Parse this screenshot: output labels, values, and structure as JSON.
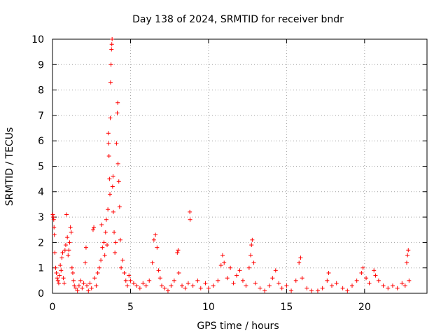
{
  "chart_data": {
    "type": "scatter",
    "title": "Day 138 of 2024, SRMTID for receiver bndr",
    "xlabel": "GPS time / hours",
    "ylabel": "SRMTID / TECUs",
    "xlim": [
      0,
      24
    ],
    "ylim": [
      0,
      10
    ],
    "xticks": [
      0,
      5,
      10,
      15,
      20
    ],
    "yticks": [
      0,
      1,
      2,
      3,
      4,
      5,
      6,
      7,
      8,
      9,
      10
    ],
    "grid": true,
    "marker": "+",
    "color": "#ff0000",
    "series": [
      {
        "name": "SRMTID",
        "points": [
          [
            0.02,
            3.1
          ],
          [
            0.05,
            3.0
          ],
          [
            0.08,
            2.9
          ],
          [
            0.1,
            2.6
          ],
          [
            0.12,
            2.3
          ],
          [
            0.15,
            1.6
          ],
          [
            0.2,
            1.0
          ],
          [
            0.25,
            0.8
          ],
          [
            0.3,
            0.6
          ],
          [
            0.35,
            0.5
          ],
          [
            0.4,
            0.4
          ],
          [
            0.45,
            0.7
          ],
          [
            0.5,
            1.1
          ],
          [
            0.55,
            0.9
          ],
          [
            0.6,
            1.4
          ],
          [
            0.65,
            1.6
          ],
          [
            0.7,
            0.6
          ],
          [
            0.75,
            0.4
          ],
          [
            0.8,
            1.7
          ],
          [
            0.85,
            1.9
          ],
          [
            0.9,
            3.1
          ],
          [
            0.95,
            2.2
          ],
          [
            1.0,
            1.5
          ],
          [
            1.05,
            1.7
          ],
          [
            1.1,
            2.0
          ],
          [
            1.15,
            2.6
          ],
          [
            1.2,
            2.4
          ],
          [
            1.25,
            1.0
          ],
          [
            1.3,
            0.8
          ],
          [
            1.35,
            0.5
          ],
          [
            1.4,
            0.3
          ],
          [
            1.5,
            0.2
          ],
          [
            1.6,
            0.1
          ],
          [
            1.7,
            0.3
          ],
          [
            1.8,
            0.5
          ],
          [
            1.9,
            0.2
          ],
          [
            2.0,
            0.4
          ],
          [
            2.1,
            1.2
          ],
          [
            2.15,
            1.8
          ],
          [
            2.2,
            0.3
          ],
          [
            2.3,
            0.1
          ],
          [
            2.4,
            0.4
          ],
          [
            2.5,
            0.2
          ],
          [
            2.6,
            2.5
          ],
          [
            2.65,
            2.6
          ],
          [
            2.7,
            0.6
          ],
          [
            2.8,
            0.3
          ],
          [
            2.9,
            0.8
          ],
          [
            3.0,
            1.0
          ],
          [
            3.1,
            1.3
          ],
          [
            3.15,
            2.7
          ],
          [
            3.2,
            1.8
          ],
          [
            3.3,
            2.0
          ],
          [
            3.35,
            1.5
          ],
          [
            3.4,
            2.4
          ],
          [
            3.45,
            2.9
          ],
          [
            3.5,
            1.9
          ],
          [
            3.55,
            3.3
          ],
          [
            3.58,
            6.3
          ],
          [
            3.6,
            5.9
          ],
          [
            3.62,
            5.4
          ],
          [
            3.65,
            4.5
          ],
          [
            3.68,
            3.9
          ],
          [
            3.7,
            6.9
          ],
          [
            3.72,
            8.3
          ],
          [
            3.75,
            9.0
          ],
          [
            3.78,
            9.6
          ],
          [
            3.8,
            9.8
          ],
          [
            3.82,
            10.0
          ],
          [
            3.85,
            4.2
          ],
          [
            3.88,
            4.6
          ],
          [
            3.9,
            3.2
          ],
          [
            3.95,
            2.4
          ],
          [
            4.0,
            1.6
          ],
          [
            4.05,
            2.0
          ],
          [
            4.1,
            5.9
          ],
          [
            4.15,
            7.1
          ],
          [
            4.18,
            7.5
          ],
          [
            4.2,
            5.1
          ],
          [
            4.25,
            4.4
          ],
          [
            4.3,
            3.4
          ],
          [
            4.35,
            2.1
          ],
          [
            4.4,
            1.0
          ],
          [
            4.5,
            1.3
          ],
          [
            4.6,
            0.8
          ],
          [
            4.7,
            0.5
          ],
          [
            4.8,
            0.3
          ],
          [
            4.9,
            0.7
          ],
          [
            5.0,
            0.5
          ],
          [
            5.2,
            0.4
          ],
          [
            5.4,
            0.3
          ],
          [
            5.6,
            0.2
          ],
          [
            5.8,
            0.4
          ],
          [
            6.0,
            0.3
          ],
          [
            6.2,
            0.5
          ],
          [
            6.4,
            1.2
          ],
          [
            6.5,
            2.1
          ],
          [
            6.6,
            2.3
          ],
          [
            6.7,
            1.8
          ],
          [
            6.8,
            0.9
          ],
          [
            6.9,
            0.6
          ],
          [
            7.0,
            0.3
          ],
          [
            7.2,
            0.2
          ],
          [
            7.4,
            0.1
          ],
          [
            7.6,
            0.3
          ],
          [
            7.8,
            0.5
          ],
          [
            8.0,
            1.6
          ],
          [
            8.05,
            1.7
          ],
          [
            8.1,
            0.8
          ],
          [
            8.3,
            0.3
          ],
          [
            8.5,
            0.2
          ],
          [
            8.7,
            0.4
          ],
          [
            8.8,
            3.2
          ],
          [
            8.82,
            2.9
          ],
          [
            9.0,
            0.3
          ],
          [
            9.3,
            0.5
          ],
          [
            9.5,
            0.2
          ],
          [
            9.8,
            0.4
          ],
          [
            10.0,
            0.2
          ],
          [
            10.3,
            0.3
          ],
          [
            10.6,
            0.5
          ],
          [
            10.8,
            1.1
          ],
          [
            10.9,
            1.5
          ],
          [
            11.0,
            1.2
          ],
          [
            11.2,
            0.6
          ],
          [
            11.4,
            1.0
          ],
          [
            11.6,
            0.4
          ],
          [
            11.8,
            0.7
          ],
          [
            12.0,
            0.9
          ],
          [
            12.2,
            0.5
          ],
          [
            12.4,
            0.3
          ],
          [
            12.6,
            1.0
          ],
          [
            12.7,
            1.5
          ],
          [
            12.75,
            1.9
          ],
          [
            12.8,
            2.1
          ],
          [
            12.9,
            1.2
          ],
          [
            13.0,
            0.4
          ],
          [
            13.3,
            0.2
          ],
          [
            13.6,
            0.1
          ],
          [
            13.9,
            0.3
          ],
          [
            14.1,
            0.6
          ],
          [
            14.3,
            0.9
          ],
          [
            14.5,
            0.4
          ],
          [
            14.7,
            0.2
          ],
          [
            15.0,
            0.3
          ],
          [
            15.3,
            0.1
          ],
          [
            15.6,
            0.5
          ],
          [
            15.8,
            1.2
          ],
          [
            15.9,
            1.4
          ],
          [
            16.0,
            0.6
          ],
          [
            16.3,
            0.2
          ],
          [
            16.6,
            0.1
          ],
          [
            17.0,
            0.1
          ],
          [
            17.3,
            0.2
          ],
          [
            17.6,
            0.5
          ],
          [
            17.7,
            0.8
          ],
          [
            17.9,
            0.3
          ],
          [
            18.2,
            0.4
          ],
          [
            18.6,
            0.2
          ],
          [
            18.9,
            0.1
          ],
          [
            19.2,
            0.3
          ],
          [
            19.5,
            0.5
          ],
          [
            19.8,
            0.8
          ],
          [
            19.9,
            1.0
          ],
          [
            20.1,
            0.6
          ],
          [
            20.3,
            0.4
          ],
          [
            20.6,
            0.9
          ],
          [
            20.7,
            0.7
          ],
          [
            20.9,
            0.5
          ],
          [
            21.2,
            0.3
          ],
          [
            21.5,
            0.2
          ],
          [
            21.8,
            0.3
          ],
          [
            22.1,
            0.2
          ],
          [
            22.4,
            0.4
          ],
          [
            22.6,
            0.3
          ],
          [
            22.7,
            1.2
          ],
          [
            22.75,
            1.5
          ],
          [
            22.8,
            1.7
          ],
          [
            22.85,
            0.5
          ]
        ]
      }
    ]
  }
}
